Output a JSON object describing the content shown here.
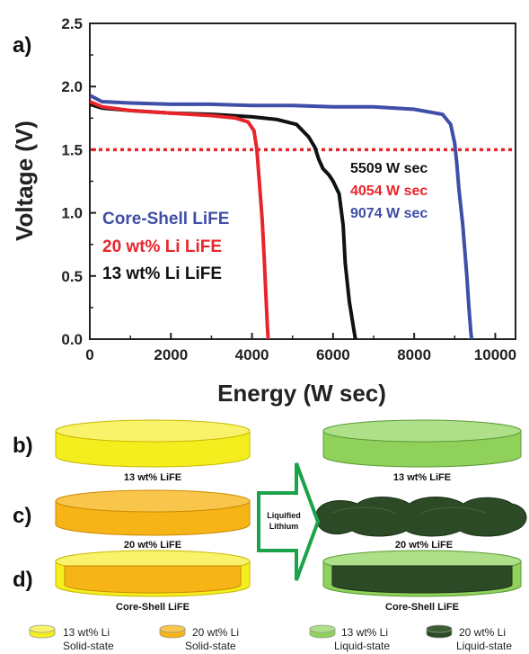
{
  "chart_data": {
    "type": "line",
    "panel_label": "a)",
    "xlabel": "Energy (W sec)",
    "ylabel": "Voltage (V)",
    "xlim": [
      0,
      10500
    ],
    "ylim": [
      0,
      2.5
    ],
    "xticks": [
      "0",
      "2000",
      "4000",
      "6000",
      "8000",
      "10000"
    ],
    "yticks": [
      "0.0",
      "0.5",
      "1.0",
      "1.5",
      "2.0",
      "2.5"
    ],
    "xtick_values": [
      0,
      2000,
      4000,
      6000,
      8000,
      10000
    ],
    "ytick_values": [
      0,
      0.5,
      1.0,
      1.5,
      2.0,
      2.5
    ],
    "reference_line": {
      "y": 1.5,
      "color": "#e8252b",
      "style": "dotted"
    },
    "grid": false,
    "series": [
      {
        "name": "Core-Shell LiFE",
        "color": "#3f4ea6",
        "x": [
          0,
          300,
          1000,
          2000,
          3000,
          4000,
          5000,
          6000,
          7000,
          8000,
          8700,
          8900,
          9000,
          9050,
          9100,
          9200,
          9300,
          9350,
          9400,
          9420
        ],
        "y": [
          1.93,
          1.88,
          1.87,
          1.86,
          1.86,
          1.85,
          1.85,
          1.84,
          1.84,
          1.82,
          1.78,
          1.7,
          1.55,
          1.4,
          1.2,
          0.9,
          0.5,
          0.25,
          0.05,
          0.0
        ]
      },
      {
        "name": "20 wt% Li LiFE",
        "color": "#e8252b",
        "x": [
          0,
          300,
          1000,
          2000,
          3000,
          3600,
          3900,
          4050,
          4120,
          4180,
          4250,
          4300,
          4350,
          4380,
          4400
        ],
        "y": [
          1.88,
          1.84,
          1.81,
          1.79,
          1.77,
          1.75,
          1.72,
          1.65,
          1.5,
          1.25,
          0.95,
          0.65,
          0.3,
          0.1,
          0.0
        ]
      },
      {
        "name": "13 wt% Li LiFE",
        "color": "#111111",
        "x": [
          0,
          300,
          1000,
          2000,
          3000,
          4000,
          4600,
          5100,
          5400,
          5550,
          5650,
          5750,
          5900,
          6000,
          6150,
          6250,
          6300,
          6400,
          6500,
          6550
        ],
        "y": [
          1.86,
          1.83,
          1.81,
          1.79,
          1.78,
          1.76,
          1.74,
          1.7,
          1.6,
          1.52,
          1.42,
          1.35,
          1.3,
          1.25,
          1.15,
          0.9,
          0.6,
          0.3,
          0.1,
          0.0
        ]
      }
    ],
    "annotations": [
      {
        "text": "5509 W sec",
        "color": "#111111"
      },
      {
        "text": "4054 W sec",
        "color": "#e8252b"
      },
      {
        "text": "9074 W sec",
        "color": "#3f4ea6"
      }
    ]
  },
  "schematic": {
    "rows": [
      {
        "label": "b)",
        "left_caption": "13 wt% LiFE",
        "right_caption": "13 wt% LiFE"
      },
      {
        "label": "c)",
        "left_caption": "20 wt% LiFE",
        "right_caption": "20 wt% LiFE"
      },
      {
        "label": "d)",
        "left_caption": "Core-Shell LiFE",
        "right_caption": "Core-Shell LiFE"
      }
    ],
    "arrow_label_line1": "Liquified",
    "arrow_label_line2": "Lithium",
    "arrow_color": "#1aa34a",
    "colors": {
      "solid_13": "#f5ee1f",
      "solid_20": "#f6b417",
      "liquid_13": "#8fd15b",
      "liquid_20": "#2c4a26"
    },
    "legend": [
      {
        "line1": "13 wt% Li",
        "line2": "Solid-state",
        "color": "#f5ee1f"
      },
      {
        "line1": "20 wt% Li",
        "line2": "Solid-state",
        "color": "#f6b417"
      },
      {
        "line1": "13 wt% Li",
        "line2": "Liquid-state",
        "color": "#8fd15b"
      },
      {
        "line1": "20 wt% Li",
        "line2": "Liquid-state",
        "color": "#2c4a26"
      }
    ]
  }
}
